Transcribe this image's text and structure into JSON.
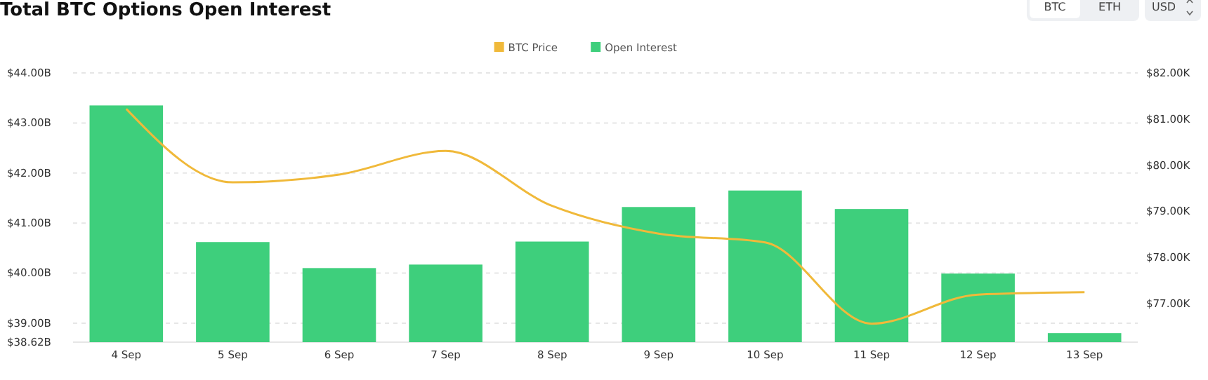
{
  "chart_data": {
    "type": "bar",
    "title": "Total BTC Options Open Interest",
    "annotations": [
      "BTC",
      "ETH",
      "USD"
    ],
    "categories": [
      "4 Sep",
      "5 Sep",
      "6 Sep",
      "7 Sep",
      "8 Sep",
      "9 Sep",
      "10 Sep",
      "11 Sep",
      "12 Sep",
      "13 Sep"
    ],
    "series": [
      {
        "name": "BTC Price",
        "type": "line",
        "axis": "y2",
        "color": "#f0b93a",
        "values": [
          81.22,
          79.63,
          79.8,
          80.31,
          79.12,
          78.52,
          78.33,
          76.57,
          77.2,
          77.25
        ]
      },
      {
        "name": "Open Interest",
        "color": "#3ecf7c",
        "values": [
          43.35,
          40.62,
          40.1,
          40.17,
          40.63,
          41.32,
          41.65,
          41.28,
          39.99,
          38.8
        ]
      }
    ],
    "ylim": [
      38.62,
      44
    ],
    "yticks": [
      {
        "value": 38.62,
        "label": "$38.62B"
      },
      {
        "value": 39,
        "label": "$39.00B"
      },
      {
        "value": 40,
        "label": "$40.00B"
      },
      {
        "value": 41,
        "label": "$41.00B"
      },
      {
        "value": 42,
        "label": "$42.00B"
      },
      {
        "value": 43,
        "label": "$43.00B"
      },
      {
        "value": 44,
        "label": "$44.00B"
      }
    ],
    "y2lim": [
      76.17,
      82
    ],
    "y2ticks": [
      {
        "value": 77,
        "label": "$77.00K"
      },
      {
        "value": 78,
        "label": "$78.00K"
      },
      {
        "value": 79,
        "label": "$79.00K"
      },
      {
        "value": 80,
        "label": "$80.00K"
      },
      {
        "value": 81,
        "label": "$81.00K"
      },
      {
        "value": 82,
        "label": "$82.00K"
      }
    ],
    "grid": "y",
    "legend": "top",
    "marker": "none"
  }
}
